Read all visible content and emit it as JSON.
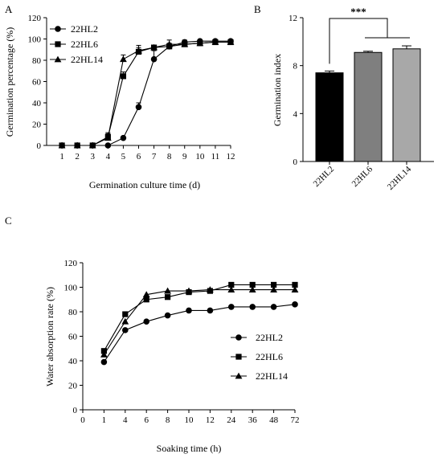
{
  "chart_data": [
    {
      "panel": "A",
      "type": "line",
      "xlabel": "Germination culture time (d)",
      "ylabel": "Germination percentage (%)",
      "x": [
        1,
        2,
        3,
        4,
        5,
        6,
        7,
        8,
        9,
        10,
        11,
        12
      ],
      "xlim": [
        0,
        12
      ],
      "ylim": [
        0,
        120
      ],
      "yticks": [
        0,
        20,
        40,
        60,
        80,
        100,
        120
      ],
      "legend": "top-left",
      "grid": false,
      "series": [
        {
          "name": "22HL2",
          "marker": "circle",
          "values": [
            0,
            0,
            0,
            0,
            7,
            36,
            81,
            93,
            97,
            98,
            98,
            98
          ],
          "errors": [
            0,
            0,
            0,
            0,
            1,
            4,
            8,
            3,
            2,
            1,
            1,
            1
          ]
        },
        {
          "name": "22HL6",
          "marker": "square",
          "values": [
            0,
            0,
            0,
            8,
            65,
            88,
            92,
            93,
            95,
            96,
            97,
            97
          ],
          "errors": [
            0,
            0,
            0,
            3,
            4,
            4,
            2,
            2,
            1,
            1,
            1,
            1
          ]
        },
        {
          "name": "22HL14",
          "marker": "triangle",
          "values": [
            0,
            0,
            0,
            7,
            81,
            89,
            92,
            95,
            95,
            96,
            97,
            97
          ],
          "errors": [
            0,
            0,
            0,
            5,
            4,
            5,
            2,
            4,
            1,
            1,
            1,
            1
          ]
        }
      ]
    },
    {
      "panel": "B",
      "type": "bar",
      "xlabel": "",
      "ylabel": "Germination index",
      "categories": [
        "22HL2",
        "22HL6",
        "22HL14"
      ],
      "values": [
        7.4,
        9.1,
        9.4
      ],
      "errors": [
        0.15,
        0.1,
        0.25
      ],
      "colors": [
        "#000000",
        "#7f7f7f",
        "#a8a8a8"
      ],
      "ylim": [
        0,
        12
      ],
      "yticks": [
        0,
        4,
        8,
        12
      ],
      "significance": "***"
    },
    {
      "panel": "C",
      "type": "line",
      "xlabel": "Soaking time (h)",
      "ylabel": "Water absorption rate (%)",
      "x": [
        1,
        4,
        6,
        8,
        10,
        12,
        24,
        36,
        48,
        72
      ],
      "xticks": [
        "0",
        "1",
        "4",
        "6",
        "8",
        "10",
        "12",
        "24",
        "36",
        "48",
        "72"
      ],
      "ylim": [
        0,
        120
      ],
      "yticks": [
        0,
        20,
        40,
        60,
        80,
        100,
        120
      ],
      "legend": "right",
      "grid": false,
      "series": [
        {
          "name": "22HL2",
          "marker": "circle",
          "values": [
            39,
            65,
            72,
            77,
            81,
            81,
            84,
            84,
            84,
            86
          ]
        },
        {
          "name": "22HL6",
          "marker": "square",
          "values": [
            48,
            78,
            90,
            92,
            96,
            97,
            102,
            102,
            102,
            102
          ]
        },
        {
          "name": "22HL14",
          "marker": "triangle",
          "values": [
            45,
            72,
            94,
            97,
            97,
            98,
            98,
            98,
            98,
            98
          ]
        }
      ]
    }
  ]
}
